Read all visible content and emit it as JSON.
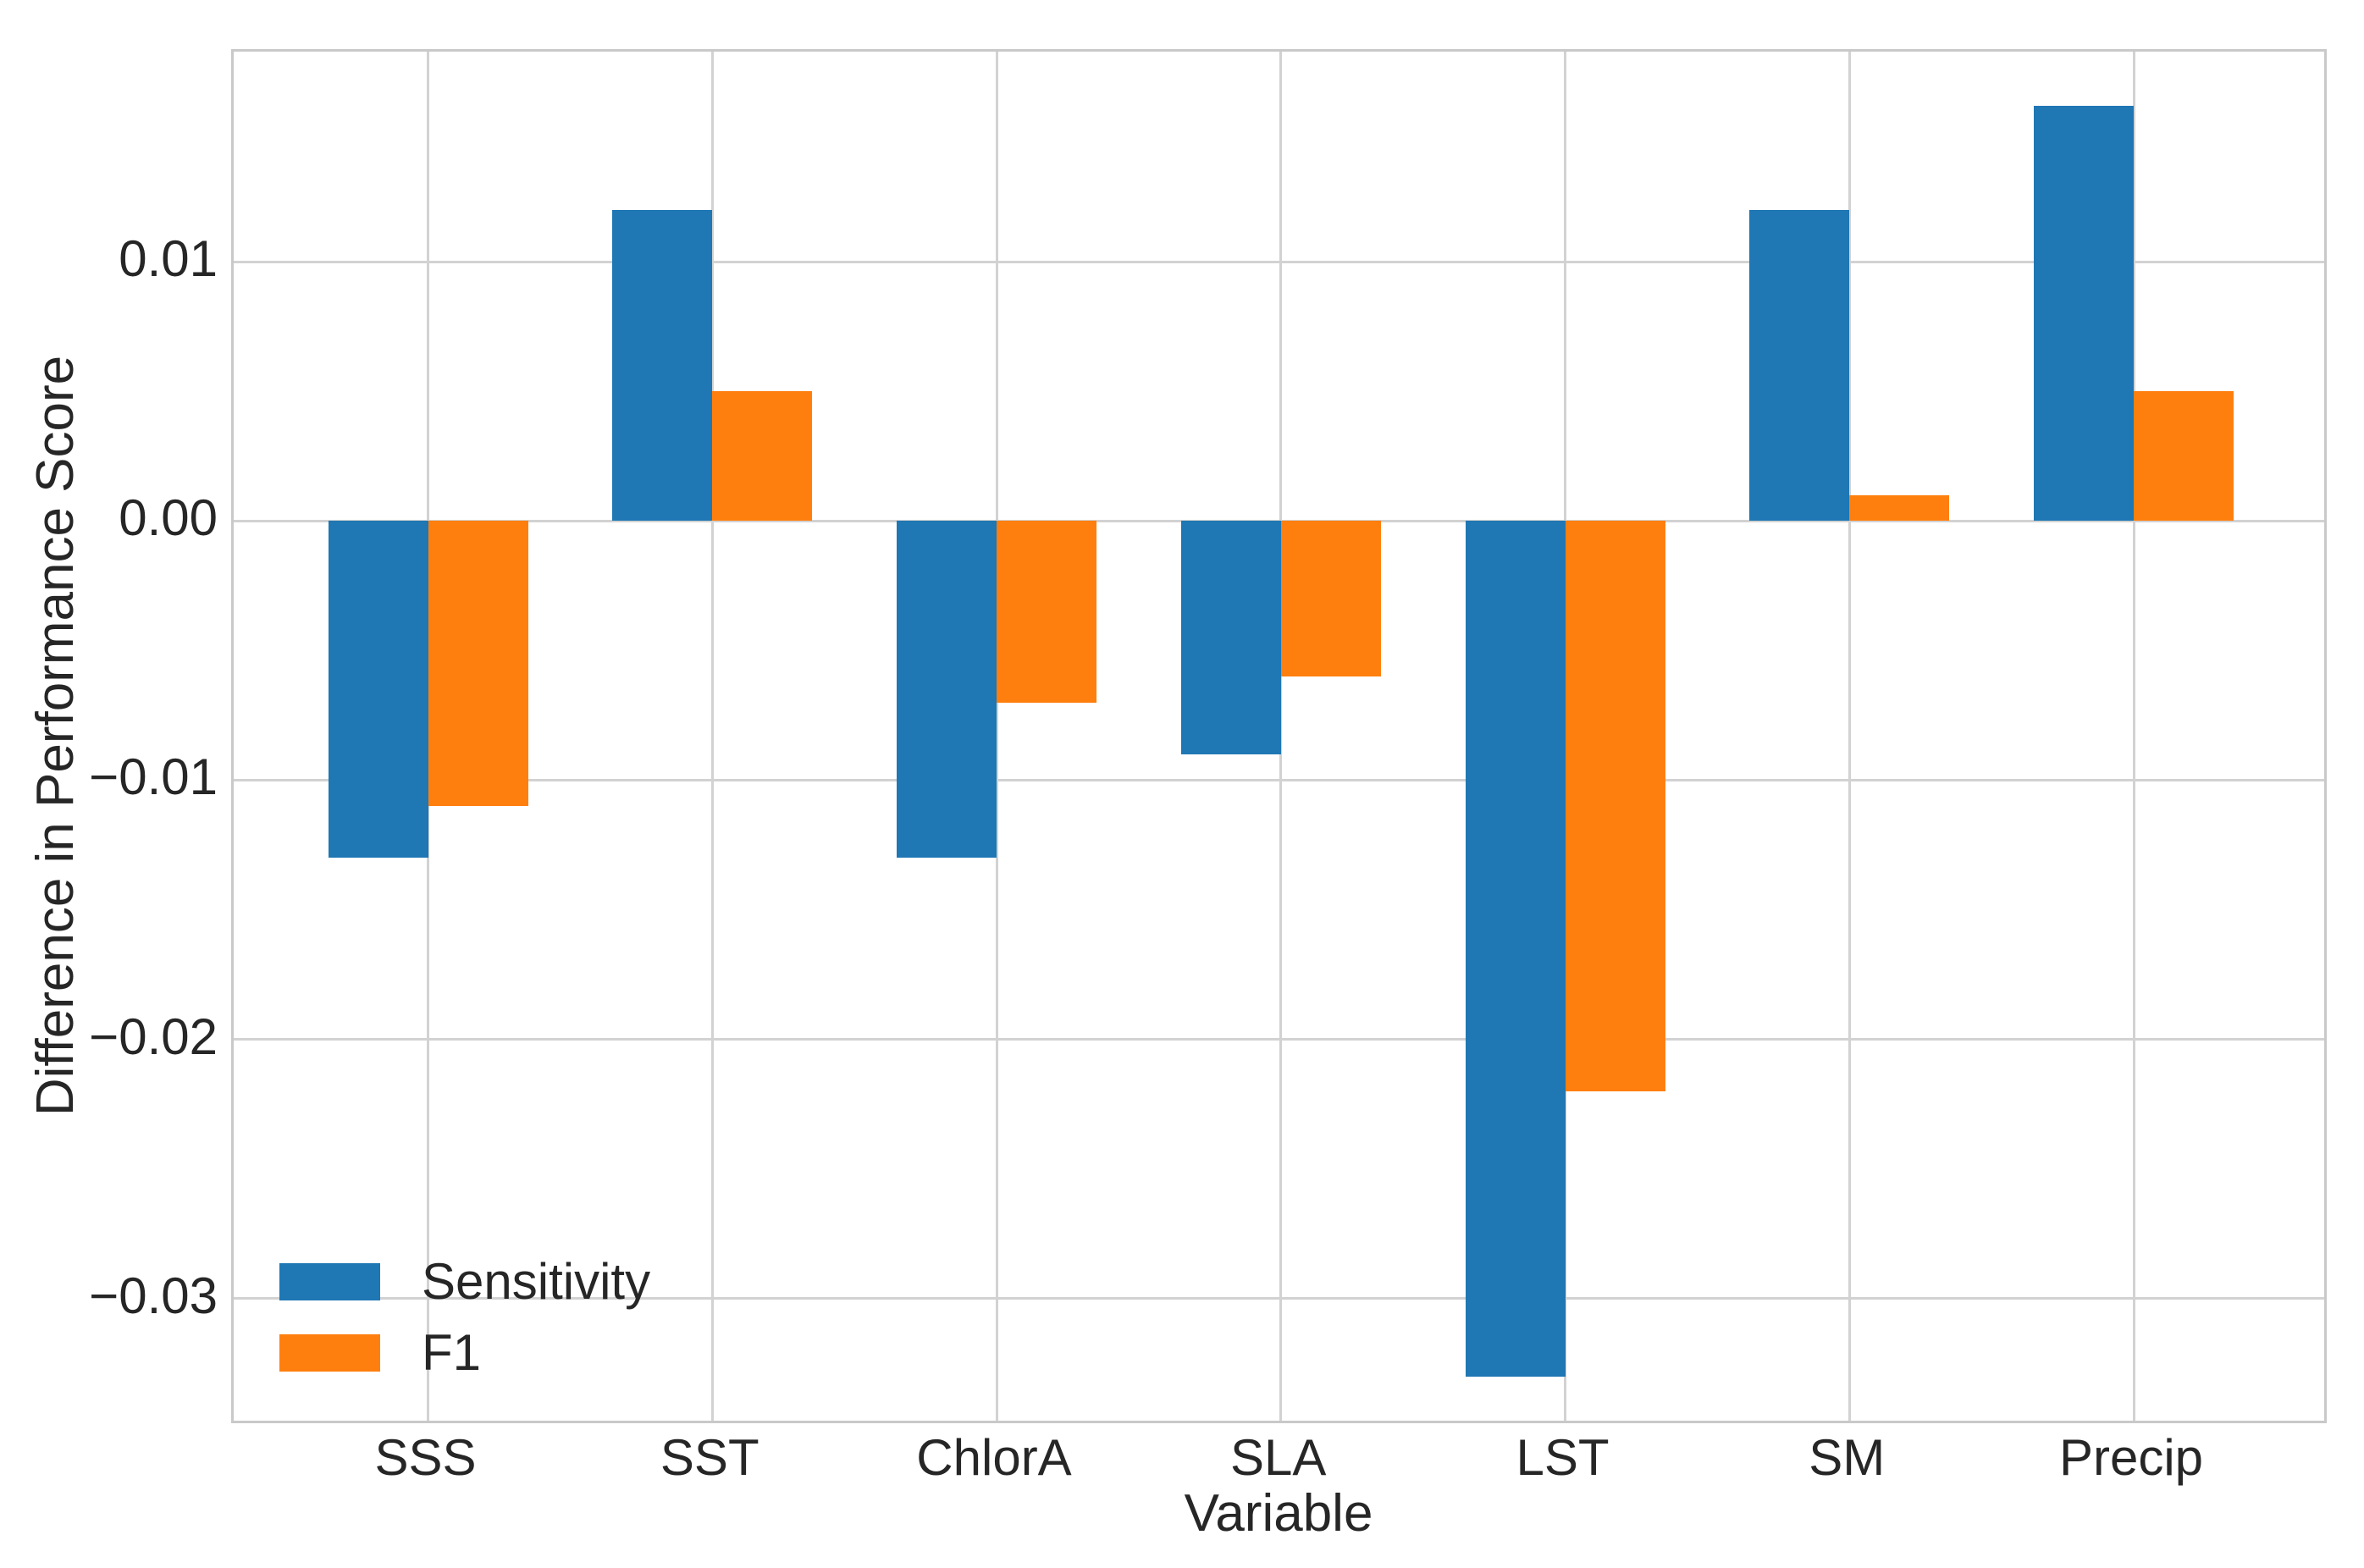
{
  "chart_data": {
    "type": "bar",
    "title": "",
    "xlabel": "Variable",
    "ylabel": "Difference in Performance Score",
    "categories": [
      "SSS",
      "SST",
      "ChlorA",
      "SLA",
      "LST",
      "SM",
      "Precip"
    ],
    "series": [
      {
        "name": "Sensitivity",
        "color": "#1f77b4",
        "values": [
          -0.013,
          0.012,
          -0.013,
          -0.009,
          -0.033,
          0.012,
          0.016
        ]
      },
      {
        "name": "F1",
        "color": "#ff7f0e",
        "values": [
          -0.011,
          0.005,
          -0.007,
          -0.006,
          -0.022,
          0.001,
          0.005
        ]
      }
    ],
    "ylim": [
      -0.0349,
      0.0181
    ],
    "yticks": [
      {
        "value": 0.01,
        "label": "0.01"
      },
      {
        "value": 0.0,
        "label": "0.00"
      },
      {
        "value": -0.01,
        "label": "−0.01"
      },
      {
        "value": -0.02,
        "label": "−0.02"
      },
      {
        "value": -0.03,
        "label": "−0.03"
      }
    ],
    "grid": "both",
    "legend": {
      "position": "lower-left",
      "frame": false
    }
  },
  "colors": {
    "background": "#ffffff",
    "grid": "#d2d2d2",
    "spine": "#c9c9c9",
    "text": "#262626"
  }
}
